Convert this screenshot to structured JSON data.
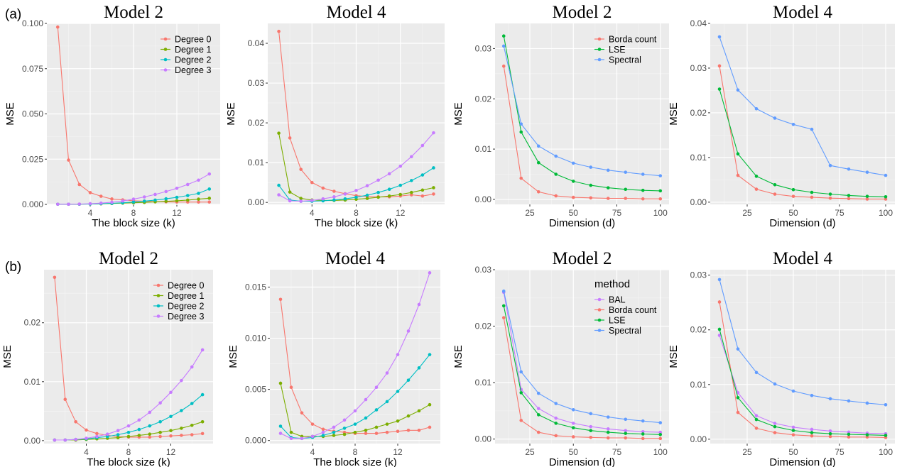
{
  "row_labels": [
    "(a)",
    "(b)"
  ],
  "colors": {
    "Degree 0": "#F8766D",
    "Degree 1": "#7CAE00",
    "Degree 2": "#00BFC4",
    "Degree 3": "#C77CFF",
    "Borda count": "#F8766D",
    "LSE": "#00BA38",
    "Spectral": "#619CFF",
    "BAL": "#C77CFF"
  },
  "chart_data": [
    {
      "type": "line",
      "row": "(a)",
      "title": "Model 2",
      "xlabel": "The block size (k)",
      "ylabel": "MSE",
      "xlim": [
        0,
        16
      ],
      "ylim": [
        0,
        0.1
      ],
      "xticks": [
        4,
        8,
        12
      ],
      "xtick_labels": [
        "4",
        "8",
        "12"
      ],
      "yticks": [
        0,
        0.025,
        0.05,
        0.075,
        0.1
      ],
      "ytick_labels": [
        "0.000",
        "0.025",
        "0.050",
        "0.075",
        "0.100"
      ],
      "legend": {
        "title": "",
        "position": "top-right"
      },
      "x": [
        1,
        2,
        3,
        4,
        5,
        6,
        7,
        8,
        9,
        10,
        11,
        12,
        13,
        14,
        15
      ],
      "series": [
        {
          "name": "Degree 0",
          "values": [
            0.098,
            0.0245,
            0.011,
            0.0065,
            0.0045,
            0.003,
            0.0025,
            0.002,
            0.0018,
            0.0015,
            0.0014,
            0.0013,
            0.0013,
            0.0013,
            0.0013
          ]
        },
        {
          "name": "Degree 1",
          "values": [
            0.0001,
            0.0001,
            0.0001,
            0.0002,
            0.0003,
            0.0005,
            0.0007,
            0.0009,
            0.0011,
            0.0014,
            0.0017,
            0.002,
            0.0024,
            0.0029,
            0.0034
          ]
        },
        {
          "name": "Degree 2",
          "values": [
            0.0001,
            0.0001,
            0.0001,
            0.0002,
            0.0004,
            0.0006,
            0.0009,
            0.0013,
            0.0018,
            0.0024,
            0.0031,
            0.0039,
            0.0049,
            0.0061,
            0.0085
          ]
        },
        {
          "name": "Degree 3",
          "values": [
            0.0001,
            0.0001,
            0.0002,
            0.0004,
            0.0007,
            0.0012,
            0.0019,
            0.0029,
            0.0041,
            0.0055,
            0.0071,
            0.0089,
            0.011,
            0.0134,
            0.0168
          ]
        }
      ]
    },
    {
      "type": "line",
      "row": "(a)",
      "title": "Model 4",
      "xlabel": "The block size (k)",
      "ylabel": "MSE",
      "xlim": [
        0,
        16
      ],
      "ylim": [
        -0.0005,
        0.045
      ],
      "xticks": [
        4,
        8,
        12
      ],
      "xtick_labels": [
        "4",
        "8",
        "12"
      ],
      "yticks": [
        0,
        0.01,
        0.02,
        0.03,
        0.04
      ],
      "ytick_labels": [
        "0.00",
        "0.01",
        "0.02",
        "0.03",
        "0.04"
      ],
      "legend": null,
      "x": [
        1,
        2,
        3,
        4,
        5,
        6,
        7,
        8,
        9,
        10,
        11,
        12,
        13,
        14,
        15
      ],
      "series": [
        {
          "name": "Degree 0",
          "values": [
            0.043,
            0.0162,
            0.0083,
            0.005,
            0.0036,
            0.0028,
            0.0022,
            0.0017,
            0.0015,
            0.0014,
            0.0014,
            0.0016,
            0.0019,
            0.0016,
            0.0021
          ]
        },
        {
          "name": "Degree 1",
          "values": [
            0.0174,
            0.0026,
            0.001,
            0.0006,
            0.0005,
            0.0005,
            0.0006,
            0.0008,
            0.001,
            0.0013,
            0.0016,
            0.002,
            0.0025,
            0.0031,
            0.0037
          ]
        },
        {
          "name": "Degree 2",
          "values": [
            0.0043,
            0.0006,
            0.0003,
            0.0003,
            0.0004,
            0.0006,
            0.0009,
            0.0013,
            0.0018,
            0.0025,
            0.0033,
            0.0043,
            0.0055,
            0.0069,
            0.0087
          ]
        },
        {
          "name": "Degree 3",
          "values": [
            0.0019,
            0.0004,
            0.0003,
            0.0005,
            0.0009,
            0.0014,
            0.0021,
            0.003,
            0.0042,
            0.0056,
            0.0072,
            0.0091,
            0.0115,
            0.0143,
            0.0175
          ]
        }
      ]
    },
    {
      "type": "line",
      "row": "(a)",
      "title": "Model 2",
      "xlabel": "Dimension (d)",
      "ylabel": "MSE",
      "xlim": [
        5,
        105
      ],
      "ylim": [
        -0.001,
        0.035
      ],
      "xticks": [
        25,
        50,
        75,
        100
      ],
      "xtick_labels": [
        "25",
        "50",
        "75",
        "100"
      ],
      "yticks": [
        0,
        0.01,
        0.02,
        0.03
      ],
      "ytick_labels": [
        "0.00",
        "0.01",
        "0.02",
        "0.03"
      ],
      "legend": {
        "title": "",
        "position": "top-right"
      },
      "x": [
        10,
        20,
        30,
        40,
        50,
        60,
        70,
        80,
        90,
        100
      ],
      "series": [
        {
          "name": "Borda count",
          "values": [
            0.0265,
            0.0042,
            0.0015,
            0.0007,
            0.0004,
            0.0003,
            0.0002,
            0.0002,
            0.0001,
            0.0001
          ]
        },
        {
          "name": "LSE",
          "values": [
            0.0325,
            0.0134,
            0.0073,
            0.005,
            0.0036,
            0.0028,
            0.0023,
            0.002,
            0.0018,
            0.0017
          ]
        },
        {
          "name": "Spectral",
          "values": [
            0.0305,
            0.015,
            0.0106,
            0.0086,
            0.0072,
            0.0064,
            0.0058,
            0.0054,
            0.005,
            0.0047
          ]
        }
      ]
    },
    {
      "type": "line",
      "row": "(a)",
      "title": "Model 4",
      "xlabel": "Dimension (d)",
      "ylabel": "MSE",
      "xlim": [
        5,
        105
      ],
      "ylim": [
        -0.0005,
        0.04
      ],
      "xticks": [
        25,
        50,
        75,
        100
      ],
      "xtick_labels": [
        "25",
        "50",
        "75",
        "100"
      ],
      "yticks": [
        0,
        0.01,
        0.02,
        0.03,
        0.04
      ],
      "ytick_labels": [
        "0.00",
        "0.01",
        "0.02",
        "0.03",
        "0.04"
      ],
      "legend": null,
      "x": [
        10,
        20,
        30,
        40,
        50,
        60,
        70,
        80,
        90,
        100
      ],
      "series": [
        {
          "name": "Borda count",
          "values": [
            0.0305,
            0.006,
            0.0029,
            0.0018,
            0.0013,
            0.0011,
            0.0009,
            0.0008,
            0.0007,
            0.0007
          ]
        },
        {
          "name": "LSE",
          "values": [
            0.0253,
            0.0108,
            0.0058,
            0.0039,
            0.0028,
            0.0022,
            0.0018,
            0.0015,
            0.0013,
            0.0012
          ]
        },
        {
          "name": "Spectral",
          "values": [
            0.037,
            0.0251,
            0.0209,
            0.0188,
            0.0174,
            0.0163,
            0.0082,
            0.0074,
            0.0067,
            0.006
          ]
        }
      ]
    },
    {
      "type": "line",
      "row": "(b)",
      "title": "Model 2",
      "xlabel": "The block size (k)",
      "ylabel": "MSE",
      "xlim": [
        0,
        16
      ],
      "ylim": [
        -0.0005,
        0.029
      ],
      "xticks": [
        4,
        8,
        12
      ],
      "xtick_labels": [
        "4",
        "8",
        "12"
      ],
      "yticks": [
        0,
        0.01,
        0.02
      ],
      "ytick_labels": [
        "0.00",
        "0.01",
        "0.02"
      ],
      "legend": {
        "title": "",
        "position": "top-right"
      },
      "x": [
        1,
        2,
        3,
        4,
        5,
        6,
        7,
        8,
        9,
        10,
        11,
        12,
        13,
        14,
        15
      ],
      "series": [
        {
          "name": "Degree 0",
          "values": [
            0.0277,
            0.007,
            0.0032,
            0.0018,
            0.0012,
            0.0009,
            0.0007,
            0.0006,
            0.0006,
            0.0006,
            0.0007,
            0.0008,
            0.0009,
            0.001,
            0.0012
          ]
        },
        {
          "name": "Degree 1",
          "values": [
            0.0001,
            0.0001,
            0.0001,
            0.0002,
            0.0003,
            0.0004,
            0.0005,
            0.0007,
            0.0009,
            0.0011,
            0.0014,
            0.0017,
            0.0021,
            0.0026,
            0.0032
          ]
        },
        {
          "name": "Degree 2",
          "values": [
            0.0001,
            0.0001,
            0.0002,
            0.0003,
            0.0005,
            0.0007,
            0.001,
            0.0014,
            0.0019,
            0.0025,
            0.0032,
            0.0041,
            0.0051,
            0.0063,
            0.0078
          ]
        },
        {
          "name": "Degree 3",
          "values": [
            0.0001,
            0.0001,
            0.0002,
            0.0004,
            0.0007,
            0.0011,
            0.0017,
            0.0025,
            0.0035,
            0.0048,
            0.0064,
            0.0082,
            0.0102,
            0.0125,
            0.0154
          ]
        }
      ]
    },
    {
      "type": "line",
      "row": "(b)",
      "title": "Model 4",
      "xlabel": "The block size (k)",
      "ylabel": "MSE",
      "xlim": [
        0,
        16
      ],
      "ylim": [
        -0.0003,
        0.0167
      ],
      "xticks": [
        4,
        8,
        12
      ],
      "xtick_labels": [
        "4",
        "8",
        "12"
      ],
      "yticks": [
        0,
        0.005,
        0.01,
        0.015
      ],
      "ytick_labels": [
        "0.000",
        "0.005",
        "0.010",
        "0.015"
      ],
      "legend": null,
      "x": [
        1,
        2,
        3,
        4,
        5,
        6,
        7,
        8,
        9,
        10,
        11,
        12,
        13,
        14,
        15
      ],
      "series": [
        {
          "name": "Degree 0",
          "values": [
            0.0138,
            0.0052,
            0.0027,
            0.0016,
            0.0011,
            0.0009,
            0.0008,
            0.0007,
            0.0007,
            0.0007,
            0.0008,
            0.0009,
            0.001,
            0.001,
            0.0013
          ]
        },
        {
          "name": "Degree 1",
          "values": [
            0.0056,
            0.0008,
            0.0004,
            0.0004,
            0.0004,
            0.0005,
            0.0006,
            0.0008,
            0.001,
            0.0013,
            0.0016,
            0.0019,
            0.0024,
            0.0029,
            0.0035
          ]
        },
        {
          "name": "Degree 2",
          "values": [
            0.0014,
            0.0003,
            0.0002,
            0.0003,
            0.0005,
            0.0008,
            0.0012,
            0.0016,
            0.0022,
            0.003,
            0.0038,
            0.0048,
            0.0059,
            0.0071,
            0.0084
          ]
        },
        {
          "name": "Degree 3",
          "values": [
            0.0007,
            0.0002,
            0.0002,
            0.0004,
            0.0008,
            0.0013,
            0.002,
            0.0029,
            0.004,
            0.0052,
            0.0066,
            0.0084,
            0.0107,
            0.0133,
            0.0164
          ]
        }
      ]
    },
    {
      "type": "line",
      "row": "(b)",
      "title": "Model 2",
      "xlabel": "Dimension (d)",
      "ylabel": "MSE",
      "xlim": [
        5,
        105
      ],
      "ylim": [
        -0.0008,
        0.03
      ],
      "xticks": [
        25,
        50,
        75,
        100
      ],
      "xtick_labels": [
        "25",
        "50",
        "75",
        "100"
      ],
      "yticks": [
        0,
        0.01,
        0.02,
        0.03
      ],
      "ytick_labels": [
        "0.00",
        "0.01",
        "0.02",
        "0.03"
      ],
      "legend": {
        "title": "method",
        "position": "top-right"
      },
      "x": [
        10,
        20,
        30,
        40,
        50,
        60,
        70,
        80,
        90,
        100
      ],
      "series": [
        {
          "name": "BAL",
          "values": [
            0.026,
            0.0088,
            0.0054,
            0.0037,
            0.0028,
            0.0022,
            0.0018,
            0.0015,
            0.0013,
            0.0012
          ]
        },
        {
          "name": "Borda count",
          "values": [
            0.0215,
            0.0033,
            0.0012,
            0.0006,
            0.0004,
            0.0003,
            0.0002,
            0.0002,
            0.0001,
            0.0001
          ]
        },
        {
          "name": "LSE",
          "values": [
            0.0236,
            0.0082,
            0.0043,
            0.0028,
            0.002,
            0.0015,
            0.0012,
            0.001,
            0.0009,
            0.0008
          ]
        },
        {
          "name": "Spectral",
          "values": [
            0.0262,
            0.0119,
            0.0081,
            0.0063,
            0.0052,
            0.0045,
            0.0039,
            0.0035,
            0.0032,
            0.0029
          ]
        }
      ]
    },
    {
      "type": "line",
      "row": "(b)",
      "title": "Model 4",
      "xlabel": "Dimension (d)",
      "ylabel": "MSE",
      "xlim": [
        5,
        105
      ],
      "ylim": [
        -0.0008,
        0.031
      ],
      "xticks": [
        25,
        50,
        75,
        100
      ],
      "xtick_labels": [
        "25",
        "50",
        "75",
        "100"
      ],
      "yticks": [
        0,
        0.01,
        0.02,
        0.03
      ],
      "ytick_labels": [
        "0.00",
        "0.01",
        "0.02",
        "0.03"
      ],
      "legend": null,
      "x": [
        10,
        20,
        30,
        40,
        50,
        60,
        70,
        80,
        90,
        100
      ],
      "series": [
        {
          "name": "BAL",
          "values": [
            0.019,
            0.0085,
            0.0043,
            0.0029,
            0.0022,
            0.0018,
            0.0015,
            0.0013,
            0.0011,
            0.001
          ]
        },
        {
          "name": "Borda count",
          "values": [
            0.0251,
            0.0049,
            0.002,
            0.0012,
            0.0008,
            0.0006,
            0.0005,
            0.0004,
            0.0004,
            0.0003
          ]
        },
        {
          "name": "LSE",
          "values": [
            0.0201,
            0.0076,
            0.0036,
            0.0023,
            0.0016,
            0.0012,
            0.001,
            0.0009,
            0.0008,
            0.0007
          ]
        },
        {
          "name": "Spectral",
          "values": [
            0.0292,
            0.0165,
            0.0122,
            0.0101,
            0.0088,
            0.008,
            0.0074,
            0.007,
            0.0066,
            0.0063
          ]
        }
      ]
    }
  ]
}
